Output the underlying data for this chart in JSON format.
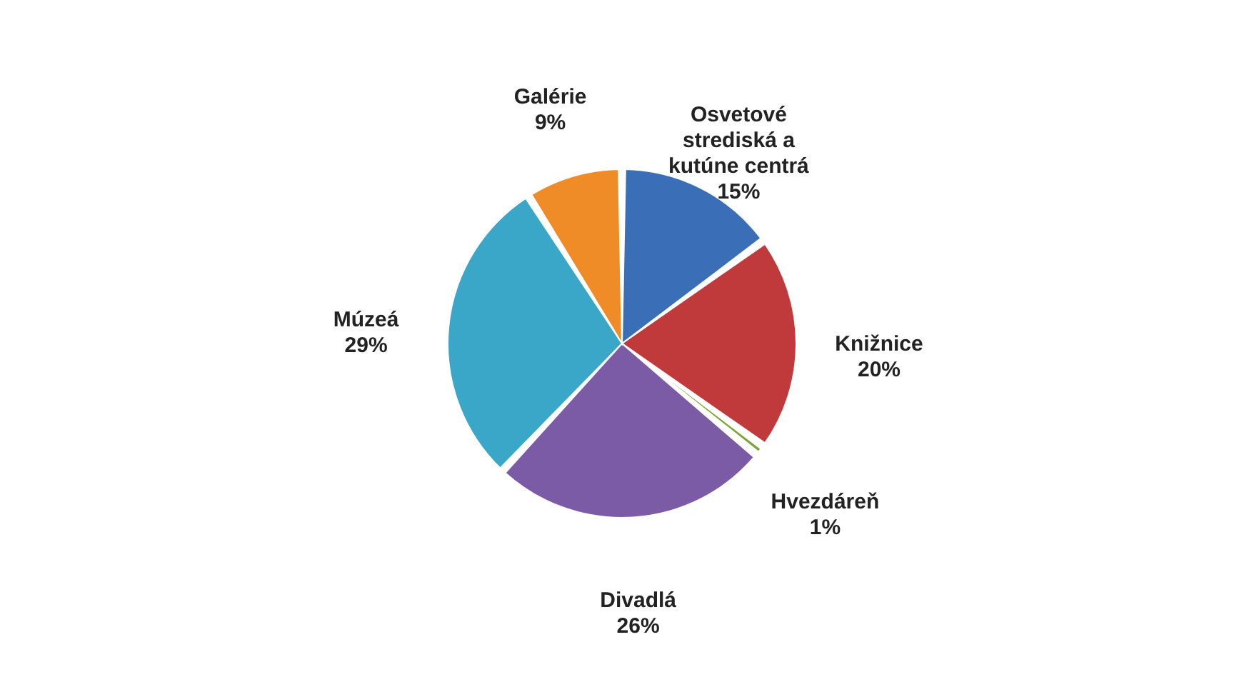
{
  "chart_data": {
    "type": "pie",
    "categories": [
      "Osvetové strediská a kutúne centrá",
      "Knižnice",
      "Hvezdáreň",
      "Divadlá",
      "Múzeá",
      "Galérie"
    ],
    "values": [
      15,
      20,
      1,
      26,
      29,
      9
    ],
    "value_labels": [
      "15%",
      "20%",
      "1%",
      "26%",
      "29%",
      "9%"
    ],
    "colors": [
      "#3a6fb8",
      "#c0393b",
      "#7aa336",
      "#7b5aa6",
      "#3aa6c8",
      "#f08c28"
    ],
    "legend": false
  }
}
